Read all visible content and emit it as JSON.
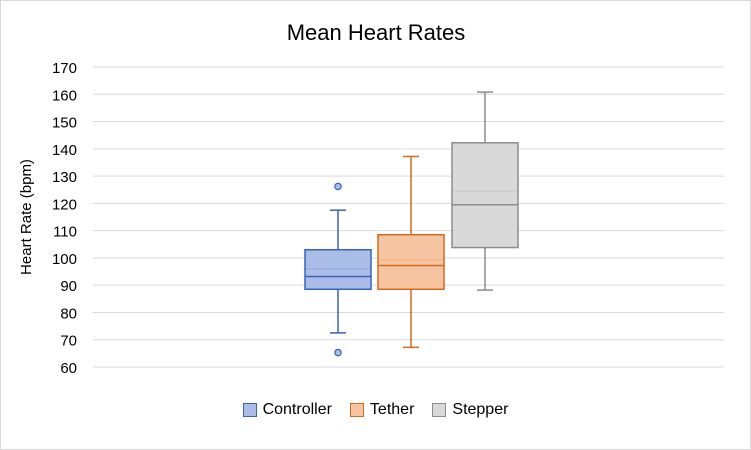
{
  "chart_data": {
    "type": "box",
    "title": "Mean Heart Rates",
    "xlabel": "",
    "ylabel": "Heart Rate (bpm)",
    "ylim": [
      60,
      170
    ],
    "yticks": [
      60,
      70,
      80,
      90,
      100,
      110,
      120,
      130,
      140,
      150,
      160,
      170
    ],
    "grid": true,
    "legend_position": "bottom",
    "series": [
      {
        "name": "Controller",
        "fill": "#a9bde6",
        "stroke": "#3a63b8",
        "min": 72.5,
        "q1": 88.5,
        "median": 93.2,
        "mean": 96,
        "q3": 103,
        "max": 117.5,
        "outliers": [
          126.2,
          65.3
        ]
      },
      {
        "name": "Tether",
        "fill": "#f6c4a1",
        "stroke": "#d46a1f",
        "min": 67.2,
        "q1": 88.5,
        "median": 97.2,
        "mean": 99.3,
        "q3": 108.5,
        "max": 137.2,
        "outliers": []
      },
      {
        "name": "Stepper",
        "fill": "#d9d9d9",
        "stroke": "#8c8c8c",
        "min": 88.2,
        "q1": 103.8,
        "median": 119.5,
        "mean": 124.5,
        "q3": 142.2,
        "max": 160.8,
        "outliers": []
      }
    ]
  }
}
